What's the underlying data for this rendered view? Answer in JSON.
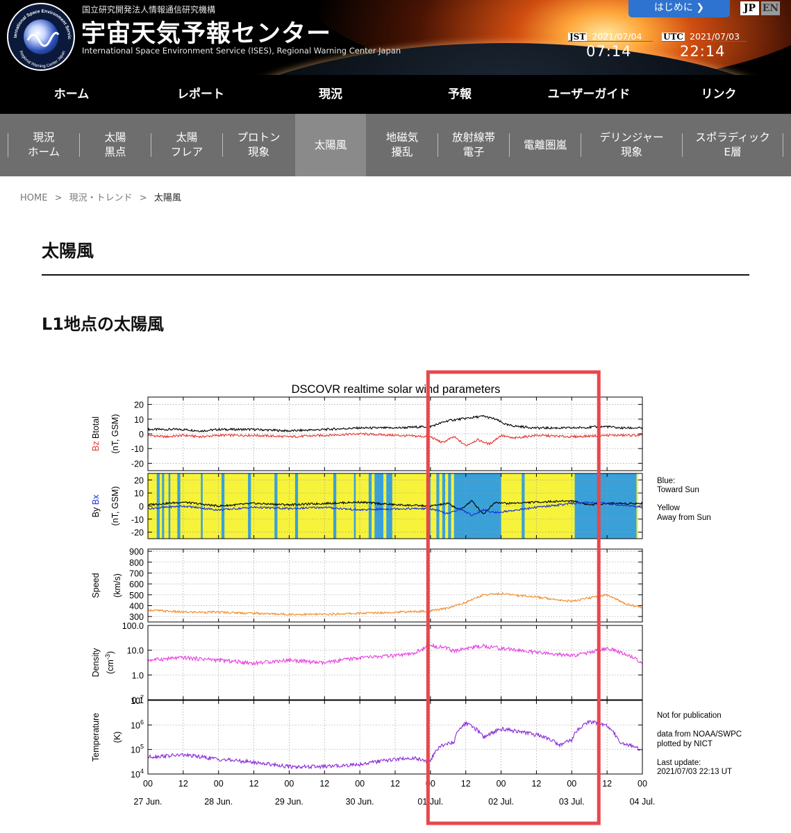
{
  "header": {
    "org_name": "国立研究開発法人情報通信研究機構",
    "site_title": "宇宙天気予報センター",
    "site_subtitle": "International Space Environment Service (ISES), Regional Warning Center Japan",
    "logo_ring_top": "International Space Environment Service",
    "logo_ring_bottom": "Regional Warning Center Japan",
    "start_button": "はじめに",
    "lang_jp": "JP",
    "lang_en": "EN",
    "jst": {
      "zone": "JST",
      "date": "2021/07/04",
      "time": "07:14"
    },
    "utc": {
      "zone": "UTC",
      "date": "2021/07/03",
      "time": "22:14"
    }
  },
  "main_nav": [
    {
      "label": "ホーム"
    },
    {
      "label": "レポート"
    },
    {
      "label": "現況"
    },
    {
      "label": "予報"
    },
    {
      "label": "ユーザーガイド"
    },
    {
      "label": "リンク"
    }
  ],
  "sub_nav": [
    {
      "line1": "現況",
      "line2": "ホーム"
    },
    {
      "line1": "太陽",
      "line2": "黒点"
    },
    {
      "line1": "太陽",
      "line2": "フレア"
    },
    {
      "line1": "プロトン",
      "line2": "現象"
    },
    {
      "line1": "太陽風",
      "line2": ""
    },
    {
      "line1": "地磁気",
      "line2": "擾乱"
    },
    {
      "line1": "放射線帯",
      "line2": "電子"
    },
    {
      "line1": "電離圏嵐",
      "line2": ""
    },
    {
      "line1": "デリンジャー",
      "line2": "現象"
    },
    {
      "line1": "スポラディック",
      "line2": "E層"
    }
  ],
  "breadcrumb": {
    "home": "HOME",
    "sep1": ">",
    "trend": "現況・トレンド",
    "sep2": ">",
    "current": "太陽風"
  },
  "page_title": "太陽風",
  "section_title": "L1地点の太陽風",
  "colors": {
    "bz": "#e8312a",
    "btotal": "#000000",
    "by": "#000000",
    "bx": "#1530d8",
    "toward_sun": "#3aa0d8",
    "away_from_sun": "#f6f33a",
    "speed": "#f08a2a",
    "density": "#e640e0",
    "temperature": "#8a2ad8",
    "highlight": "#e8474c"
  },
  "chart_data": {
    "type": "line",
    "title": "DSCOVR realtime solar wind parameters",
    "x_ticks": [
      "00",
      "12",
      "00",
      "12",
      "00",
      "12",
      "00",
      "12",
      "00",
      "12",
      "00",
      "12",
      "00",
      "12",
      "00"
    ],
    "date_labels": [
      "27 Jun.",
      "28 Jun.",
      "29 Jun.",
      "30 Jun.",
      "01 Jul.",
      "02 Jul.",
      "03 Jul.",
      "04 Jul."
    ],
    "x_range_hours": [
      0,
      168
    ],
    "panels": [
      {
        "name": "Bz-Btotal",
        "ylabel_parts": [
          "Bz",
          "Btotal",
          "(nT, GSM)"
        ],
        "yticks": [
          "20",
          "10",
          "0",
          "-10",
          "-20"
        ],
        "ylim": [
          -25,
          25
        ],
        "series": [
          {
            "name": "Btotal",
            "x": [
              0,
              6,
              12,
              18,
              24,
              36,
              48,
              60,
              72,
              84,
              96,
              102,
              106,
              110,
              114,
              118,
              122,
              126,
              132,
              144,
              156,
              160,
              168
            ],
            "y": [
              3,
              3,
              3,
              2,
              3,
              3,
              2,
              3,
              4,
              4,
              5,
              9,
              10,
              11,
              12,
              10,
              6,
              5,
              4,
              4,
              5,
              4,
              4
            ]
          },
          {
            "name": "Bz",
            "x": [
              0,
              6,
              12,
              18,
              24,
              36,
              48,
              60,
              72,
              84,
              96,
              100,
              104,
              108,
              112,
              116,
              120,
              124,
              132,
              144,
              156,
              160,
              168
            ],
            "y": [
              -1,
              -2,
              -1,
              -2,
              -1,
              -1,
              -2,
              -1,
              0,
              -1,
              -2,
              -6,
              -2,
              -8,
              -4,
              -7,
              -1,
              -3,
              -1,
              -2,
              -1,
              -1,
              -1
            ]
          }
        ]
      },
      {
        "name": "By-Bx",
        "ylabel_parts": [
          "By",
          "Bx",
          "(nT, GSM)"
        ],
        "yticks": [
          "20",
          "10",
          "0",
          "-10",
          "-20"
        ],
        "ylim": [
          -25,
          25
        ],
        "legend": [
          {
            "label": "Blue:",
            "color_key": "toward_sun"
          },
          {
            "label": "Toward Sun",
            "color_key": "toward_sun"
          },
          {
            "label": "Yellow",
            "color_key": "text"
          },
          {
            "label": "Away from Sun",
            "color_key": "text"
          }
        ],
        "toward_sun_intervals": [
          [
            3,
            4
          ],
          [
            4.8,
            5.5
          ],
          [
            7,
            7.6
          ],
          [
            10,
            11
          ],
          [
            18,
            18.6
          ],
          [
            25,
            26
          ],
          [
            34,
            35
          ],
          [
            43,
            44
          ],
          [
            50,
            51
          ],
          [
            63,
            64
          ],
          [
            70,
            70.6
          ],
          [
            75,
            76
          ],
          [
            77,
            80
          ],
          [
            81,
            83
          ],
          [
            95,
            96
          ],
          [
            98,
            99
          ],
          [
            100,
            101
          ],
          [
            102,
            103
          ],
          [
            104,
            120
          ],
          [
            127,
            128
          ],
          [
            145,
            166
          ]
        ],
        "series": [
          {
            "name": "By",
            "x": [
              0,
              12,
              24,
              36,
              48,
              60,
              72,
              84,
              96,
              102,
              106,
              110,
              114,
              118,
              122,
              132,
              144,
              150,
              156,
              168
            ],
            "y": [
              1,
              3,
              0,
              2,
              1,
              2,
              3,
              1,
              0,
              2,
              -3,
              4,
              -6,
              3,
              2,
              3,
              4,
              1,
              2,
              2
            ]
          },
          {
            "name": "Bx",
            "x": [
              0,
              12,
              24,
              36,
              48,
              60,
              72,
              84,
              96,
              102,
              106,
              110,
              114,
              118,
              122,
              132,
              144,
              150,
              156,
              168
            ],
            "y": [
              -2,
              0,
              -3,
              -1,
              -2,
              -1,
              -3,
              -2,
              -2,
              -6,
              -2,
              -7,
              -3,
              -5,
              -4,
              -1,
              2,
              3,
              2,
              -1
            ]
          }
        ]
      },
      {
        "name": "Speed",
        "ylabel_parts": [
          "Speed",
          "(km/s)"
        ],
        "yticks": [
          "900",
          "800",
          "700",
          "600",
          "500",
          "400",
          "300"
        ],
        "ylim": [
          250,
          920
        ],
        "series": [
          {
            "name": "Speed",
            "x": [
              0,
              12,
              24,
              36,
              48,
              60,
              72,
              84,
              96,
              102,
              108,
              114,
              120,
              132,
              144,
              156,
              162,
              168
            ],
            "y": [
              360,
              340,
              340,
              330,
              320,
              320,
              330,
              340,
              350,
              380,
              430,
              500,
              510,
              480,
              440,
              500,
              420,
              380
            ]
          }
        ]
      },
      {
        "name": "Density",
        "ylabel_parts": [
          "Density",
          "(cm-3)"
        ],
        "yticks": [
          "100.0",
          "10.0",
          "1.0",
          "0.1"
        ],
        "ylim": [
          0.1,
          100
        ],
        "scale": "log",
        "series": [
          {
            "name": "Density",
            "x": [
              0,
              12,
              24,
              36,
              48,
              60,
              72,
              84,
              90,
              96,
              100,
              104,
              108,
              114,
              120,
              132,
              144,
              150,
              156,
              162,
              168
            ],
            "y": [
              4,
              5,
              4,
              3,
              4,
              3,
              5,
              6,
              7,
              15,
              14,
              9,
              12,
              15,
              12,
              8,
              6,
              8,
              12,
              7,
              3
            ]
          }
        ]
      },
      {
        "name": "Temperature",
        "ylabel_parts": [
          "Temperature",
          "(K)"
        ],
        "yticks": [
          "10^7",
          "10^6",
          "10^5",
          "10^4"
        ],
        "ylim": [
          10000,
          10000000
        ],
        "scale": "log",
        "series": [
          {
            "name": "Temperature",
            "x": [
              0,
              12,
              24,
              36,
              48,
              60,
              72,
              84,
              90,
              96,
              100,
              104,
              108,
              114,
              120,
              132,
              140,
              144,
              150,
              156,
              160,
              168
            ],
            "y": [
              50000,
              60000,
              40000,
              30000,
              20000,
              20000,
              25000,
              40000,
              45000,
              30000,
              150000,
              200000,
              1200000,
              300000,
              700000,
              400000,
              150000,
              250000,
              1400000,
              900000,
              200000,
              90000
            ]
          }
        ]
      }
    ],
    "notes": {
      "not_for_publication": "Not for publication",
      "data_from": "data from NOAA/SWPC",
      "plotted_by": "plotted by NICT",
      "last_update_label": "Last update:",
      "last_update_value": "2021/07/03 22:13 UT"
    },
    "highlight_box_hours": [
      98,
      148
    ]
  }
}
